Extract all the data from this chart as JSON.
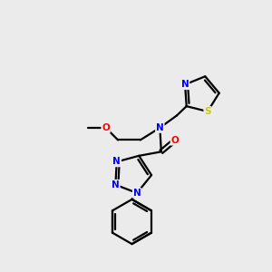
{
  "bg_color": "#ebebeb",
  "atom_colors": {
    "N": "#0000ff",
    "O": "#ff0000",
    "S": "#cccc00",
    "C": "#000000"
  },
  "bond_color": "#000000",
  "bond_width": 1.6,
  "font_size_atom": 7.5,
  "fig_size": [
    3.0,
    3.0
  ],
  "dpi": 100
}
